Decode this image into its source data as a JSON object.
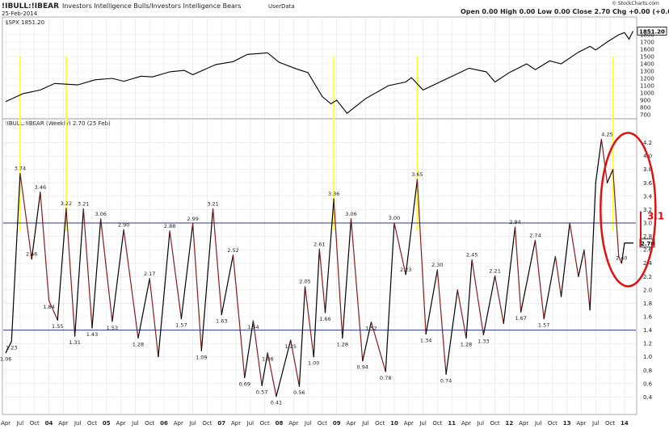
{
  "header": {
    "symbol": "!IBULL:!IBEAR",
    "description": "Investors Intelligence Bulls/Investors Intelligence Bears",
    "source": "UserData",
    "date": "25-Feb-2014",
    "quote": "Open 0.00  High 0.00  Low 0.00  Close 2.70  Chg +0.00 (+0.00%)",
    "watermark": "© StockCharts.com"
  },
  "colors": {
    "price_line": "#000000",
    "indicator_up": "#000000",
    "indicator_down": "#8b1a1a",
    "highlight": "#ffff33",
    "ref_line": "#2a3a8a",
    "annotation": "#e01010",
    "grid": "#e4e4e4"
  },
  "chart_data": [
    {
      "type": "line",
      "title": "$SPX 1851.20",
      "last_value_label": "1851.20",
      "ylim": [
        700,
        1900
      ],
      "y_ticks": [
        700,
        800,
        900,
        1000,
        1100,
        1200,
        1300,
        1400,
        1500,
        1600,
        1700,
        1800
      ],
      "x": [
        2003.25,
        2003.55,
        2003.85,
        2004.1,
        2004.5,
        2004.8,
        2005.1,
        2005.3,
        2005.6,
        2005.8,
        2006.1,
        2006.35,
        2006.5,
        2006.9,
        2007.2,
        2007.45,
        2007.8,
        2008.0,
        2008.3,
        2008.5,
        2008.75,
        2008.9,
        2009.0,
        2009.18,
        2009.5,
        2009.9,
        2010.2,
        2010.3,
        2010.5,
        2010.9,
        2011.3,
        2011.6,
        2011.75,
        2012.0,
        2012.3,
        2012.45,
        2012.7,
        2012.9,
        2013.2,
        2013.4,
        2013.5,
        2013.7,
        2013.9,
        2014.0,
        2014.08,
        2014.15
      ],
      "y": [
        880,
        990,
        1040,
        1130,
        1110,
        1180,
        1200,
        1160,
        1230,
        1220,
        1290,
        1310,
        1250,
        1390,
        1430,
        1530,
        1550,
        1420,
        1330,
        1280,
        950,
        850,
        900,
        720,
        920,
        1100,
        1150,
        1210,
        1040,
        1190,
        1340,
        1290,
        1150,
        1280,
        1400,
        1320,
        1440,
        1400,
        1560,
        1640,
        1590,
        1700,
        1800,
        1830,
        1740,
        1851
      ]
    },
    {
      "type": "line",
      "title": "!IBULL:!IBEAR (Weekly) 2.70 (25 Feb)",
      "last_value_label": "2.70",
      "ylim": [
        0.2,
        4.4
      ],
      "y_ticks": [
        0.4,
        0.6,
        0.8,
        1.0,
        1.2,
        1.4,
        1.6,
        1.8,
        2.0,
        2.2,
        2.4,
        2.6,
        2.8,
        3.0,
        3.2,
        3.4,
        3.6,
        3.8,
        4.0,
        4.2
      ],
      "reference_lines": [
        3.0,
        1.4
      ],
      "x": [
        2003.25,
        2003.35,
        2003.5,
        2003.7,
        2003.85,
        2004.0,
        2004.15,
        2004.3,
        2004.45,
        2004.6,
        2004.75,
        2004.9,
        2005.1,
        2005.3,
        2005.55,
        2005.75,
        2005.9,
        2006.1,
        2006.3,
        2006.5,
        2006.65,
        2006.85,
        2007.0,
        2007.2,
        2007.4,
        2007.55,
        2007.7,
        2007.8,
        2007.95,
        2008.2,
        2008.35,
        2008.45,
        2008.6,
        2008.7,
        2008.8,
        2008.95,
        2009.1,
        2009.25,
        2009.45,
        2009.6,
        2009.85,
        2010.0,
        2010.2,
        2010.4,
        2010.55,
        2010.75,
        2010.9,
        2011.1,
        2011.25,
        2011.35,
        2011.55,
        2011.75,
        2011.9,
        2012.1,
        2012.2,
        2012.45,
        2012.6,
        2012.8,
        2012.9,
        2013.05,
        2013.2,
        2013.3,
        2013.4,
        2013.5,
        2013.6,
        2013.7,
        2013.8,
        2013.9,
        2013.95,
        2014.0,
        2014.05,
        2014.1,
        2014.12,
        2014.15
      ],
      "y": [
        1.06,
        1.23,
        3.74,
        2.46,
        3.46,
        1.84,
        1.55,
        3.22,
        1.31,
        3.21,
        1.43,
        3.06,
        1.53,
        2.9,
        1.28,
        2.17,
        1.0,
        2.88,
        1.57,
        2.99,
        1.09,
        3.21,
        1.63,
        2.52,
        0.69,
        1.54,
        0.57,
        1.06,
        0.41,
        1.25,
        0.56,
        2.05,
        1.0,
        2.61,
        1.66,
        3.36,
        1.28,
        3.06,
        0.94,
        1.52,
        0.78,
        3.0,
        2.23,
        3.65,
        1.34,
        2.3,
        0.74,
        2.0,
        1.28,
        2.45,
        1.33,
        2.21,
        1.5,
        2.94,
        1.67,
        2.74,
        1.57,
        2.5,
        1.9,
        3.0,
        2.2,
        2.6,
        1.7,
        3.6,
        4.25,
        3.6,
        3.8,
        2.5,
        2.4,
        2.7,
        2.7,
        2.7,
        2.7,
        2.7
      ],
      "data_labels": [
        {
          "x": 2003.25,
          "y": 1.06,
          "text": "1.06"
        },
        {
          "x": 2003.35,
          "y": 1.23,
          "text": "1.23"
        },
        {
          "x": 2003.5,
          "y": 3.74,
          "text": "3.74"
        },
        {
          "x": 2003.7,
          "y": 2.46,
          "text": "2.46"
        },
        {
          "x": 2003.85,
          "y": 3.46,
          "text": "3.46"
        },
        {
          "x": 2004.0,
          "y": 1.84,
          "text": "1.84"
        },
        {
          "x": 2004.15,
          "y": 1.55,
          "text": "1.55"
        },
        {
          "x": 2004.3,
          "y": 3.22,
          "text": "3.22"
        },
        {
          "x": 2004.45,
          "y": 1.31,
          "text": "1.31"
        },
        {
          "x": 2004.6,
          "y": 3.21,
          "text": "3.21"
        },
        {
          "x": 2004.75,
          "y": 1.43,
          "text": "1.43"
        },
        {
          "x": 2004.9,
          "y": 3.06,
          "text": "3.06"
        },
        {
          "x": 2005.1,
          "y": 1.53,
          "text": "1.53"
        },
        {
          "x": 2005.3,
          "y": 2.9,
          "text": "2.90"
        },
        {
          "x": 2005.55,
          "y": 1.28,
          "text": "1.28"
        },
        {
          "x": 2005.75,
          "y": 2.17,
          "text": "2.17"
        },
        {
          "x": 2006.1,
          "y": 2.88,
          "text": "2.88"
        },
        {
          "x": 2006.3,
          "y": 1.57,
          "text": "1.57"
        },
        {
          "x": 2006.5,
          "y": 2.99,
          "text": "2.99"
        },
        {
          "x": 2006.65,
          "y": 1.09,
          "text": "1.09"
        },
        {
          "x": 2006.85,
          "y": 3.21,
          "text": "3.21"
        },
        {
          "x": 2007.0,
          "y": 1.63,
          "text": "1.63"
        },
        {
          "x": 2007.2,
          "y": 2.52,
          "text": "2.52"
        },
        {
          "x": 2007.4,
          "y": 0.69,
          "text": "0.69"
        },
        {
          "x": 2007.55,
          "y": 1.54,
          "text": "1.54"
        },
        {
          "x": 2007.7,
          "y": 0.57,
          "text": "0.57"
        },
        {
          "x": 2007.8,
          "y": 1.06,
          "text": "1.06"
        },
        {
          "x": 2007.95,
          "y": 0.41,
          "text": "0.41"
        },
        {
          "x": 2008.2,
          "y": 1.25,
          "text": "1.25"
        },
        {
          "x": 2008.35,
          "y": 0.56,
          "text": "0.56"
        },
        {
          "x": 2008.45,
          "y": 2.05,
          "text": "2.05"
        },
        {
          "x": 2008.6,
          "y": 1.0,
          "text": "1.00"
        },
        {
          "x": 2008.7,
          "y": 2.61,
          "text": "2.61"
        },
        {
          "x": 2008.8,
          "y": 1.66,
          "text": "1.66"
        },
        {
          "x": 2008.95,
          "y": 3.36,
          "text": "3.36"
        },
        {
          "x": 2009.1,
          "y": 1.28,
          "text": "1.28"
        },
        {
          "x": 2009.25,
          "y": 3.06,
          "text": "3.06"
        },
        {
          "x": 2009.45,
          "y": 0.94,
          "text": "0.94"
        },
        {
          "x": 2009.6,
          "y": 1.52,
          "text": "1.52"
        },
        {
          "x": 2009.85,
          "y": 0.78,
          "text": "0.78"
        },
        {
          "x": 2010.0,
          "y": 3.0,
          "text": "3.00"
        },
        {
          "x": 2010.2,
          "y": 2.23,
          "text": "2.23"
        },
        {
          "x": 2010.4,
          "y": 3.65,
          "text": "3.65"
        },
        {
          "x": 2010.55,
          "y": 1.34,
          "text": "1.34"
        },
        {
          "x": 2010.75,
          "y": 2.3,
          "text": "2.30"
        },
        {
          "x": 2010.9,
          "y": 0.74,
          "text": "0.74"
        },
        {
          "x": 2011.25,
          "y": 1.28,
          "text": "1.28"
        },
        {
          "x": 2011.35,
          "y": 2.45,
          "text": "2.45"
        },
        {
          "x": 2011.55,
          "y": 1.33,
          "text": "1.33"
        },
        {
          "x": 2011.75,
          "y": 2.21,
          "text": "2.21"
        },
        {
          "x": 2012.1,
          "y": 2.94,
          "text": "2.94"
        },
        {
          "x": 2012.2,
          "y": 1.67,
          "text": "1.67"
        },
        {
          "x": 2012.45,
          "y": 2.74,
          "text": "2.74"
        },
        {
          "x": 2012.6,
          "y": 1.57,
          "text": "1.57"
        },
        {
          "x": 2013.7,
          "y": 4.25,
          "text": "4.25"
        },
        {
          "x": 2013.95,
          "y": 2.4,
          "text": "2.40"
        }
      ],
      "annotations": [
        {
          "text": "3.1",
          "x": 2014.15,
          "y": 3.1
        },
        {
          "shape": "ellipse",
          "around_x": 2013.95,
          "around_y": 3.2
        }
      ],
      "highlight_x": [
        2003.5,
        2004.3,
        2008.95,
        2010.4,
        2013.8
      ]
    }
  ],
  "x_axis": {
    "ticks": [
      {
        "x": 2003.25,
        "label": "Apr"
      },
      {
        "x": 2003.5,
        "label": "Jul"
      },
      {
        "x": 2003.75,
        "label": "Oct"
      },
      {
        "x": 2004.0,
        "label": "04"
      },
      {
        "x": 2004.25,
        "label": "Apr"
      },
      {
        "x": 2004.5,
        "label": "Jul"
      },
      {
        "x": 2004.75,
        "label": "Oct"
      },
      {
        "x": 2005.0,
        "label": "05"
      },
      {
        "x": 2005.25,
        "label": "Apr"
      },
      {
        "x": 2005.5,
        "label": "Jul"
      },
      {
        "x": 2005.75,
        "label": "Oct"
      },
      {
        "x": 2006.0,
        "label": "06"
      },
      {
        "x": 2006.25,
        "label": "Apr"
      },
      {
        "x": 2006.5,
        "label": "Jul"
      },
      {
        "x": 2006.75,
        "label": "Oct"
      },
      {
        "x": 2007.0,
        "label": "07"
      },
      {
        "x": 2007.25,
        "label": "Apr"
      },
      {
        "x": 2007.5,
        "label": "Jul"
      },
      {
        "x": 2007.75,
        "label": "Oct"
      },
      {
        "x": 2008.0,
        "label": "08"
      },
      {
        "x": 2008.25,
        "label": "Apr"
      },
      {
        "x": 2008.5,
        "label": "Jul"
      },
      {
        "x": 2008.75,
        "label": "Oct"
      },
      {
        "x": 2009.0,
        "label": "09"
      },
      {
        "x": 2009.25,
        "label": "Apr"
      },
      {
        "x": 2009.5,
        "label": "Jul"
      },
      {
        "x": 2009.75,
        "label": "Oct"
      },
      {
        "x": 2010.0,
        "label": "10"
      },
      {
        "x": 2010.25,
        "label": "Apr"
      },
      {
        "x": 2010.5,
        "label": "Jul"
      },
      {
        "x": 2010.75,
        "label": "Oct"
      },
      {
        "x": 2011.0,
        "label": "11"
      },
      {
        "x": 2011.25,
        "label": "Apr"
      },
      {
        "x": 2011.5,
        "label": "Jul"
      },
      {
        "x": 2011.75,
        "label": "Oct"
      },
      {
        "x": 2012.0,
        "label": "12"
      },
      {
        "x": 2012.25,
        "label": "Apr"
      },
      {
        "x": 2012.5,
        "label": "Jul"
      },
      {
        "x": 2012.75,
        "label": "Oct"
      },
      {
        "x": 2013.0,
        "label": "13"
      },
      {
        "x": 2013.25,
        "label": "Apr"
      },
      {
        "x": 2013.5,
        "label": "Jul"
      },
      {
        "x": 2013.75,
        "label": "Oct"
      },
      {
        "x": 2014.0,
        "label": "14"
      }
    ]
  }
}
